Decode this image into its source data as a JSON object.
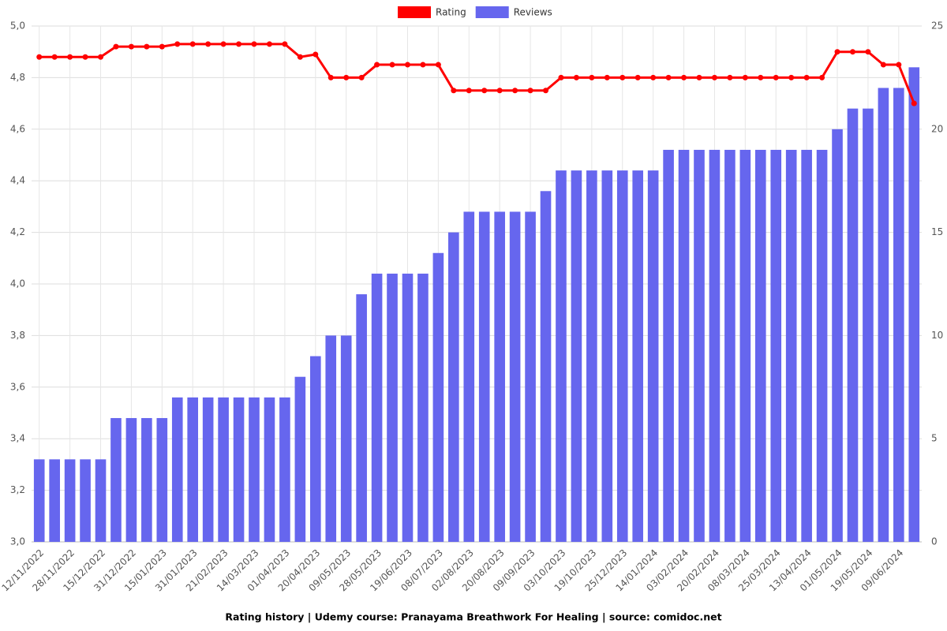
{
  "chart_data": {
    "type": "combo",
    "title": "Rating history | Udemy course: Pranayama Breathwork For Healing | source: comidoc.net",
    "categories": [
      "12/11/2022",
      null,
      "28/11/2022",
      null,
      "15/12/2022",
      null,
      "31/12/2022",
      null,
      "15/01/2023",
      null,
      "31/01/2023",
      null,
      "21/02/2023",
      null,
      "14/03/2023",
      null,
      "01/04/2023",
      null,
      "20/04/2023",
      null,
      "09/05/2023",
      null,
      "28/05/2023",
      null,
      "19/06/2023",
      null,
      "08/07/2023",
      null,
      "02/08/2023",
      null,
      "20/08/2023",
      null,
      "09/09/2023",
      null,
      "03/10/2023",
      null,
      "19/10/2023",
      null,
      "25/12/2023",
      null,
      "14/01/2024",
      null,
      "03/02/2024",
      null,
      "20/02/2024",
      null,
      "08/03/2024",
      null,
      "25/03/2024",
      null,
      "13/04/2024",
      null,
      "01/05/2024",
      null,
      "19/05/2024",
      null,
      "09/06/2024",
      null
    ],
    "series": [
      {
        "name": "Rating",
        "type": "line",
        "axis": "y",
        "color": "#ff0000",
        "values": [
          4.88,
          4.88,
          4.88,
          4.88,
          4.88,
          4.92,
          4.92,
          4.92,
          4.92,
          4.93,
          4.93,
          4.93,
          4.93,
          4.93,
          4.93,
          4.93,
          4.93,
          4.88,
          4.89,
          4.8,
          4.8,
          4.8,
          4.85,
          4.85,
          4.85,
          4.85,
          4.85,
          4.75,
          4.75,
          4.75,
          4.75,
          4.75,
          4.75,
          4.75,
          4.8,
          4.8,
          4.8,
          4.8,
          4.8,
          4.8,
          4.8,
          4.8,
          4.8,
          4.8,
          4.8,
          4.8,
          4.8,
          4.8,
          4.8,
          4.8,
          4.8,
          4.8,
          4.9,
          4.9,
          4.9,
          4.85,
          4.85,
          4.7
        ]
      },
      {
        "name": "Reviews",
        "type": "bar",
        "axis": "y2",
        "color": "#6666ee",
        "values": [
          4,
          4,
          4,
          4,
          4,
          6,
          6,
          6,
          6,
          7,
          7,
          7,
          7,
          7,
          7,
          7,
          7,
          8,
          9,
          10,
          10,
          12,
          13,
          13,
          13,
          13,
          14,
          15,
          16,
          16,
          16,
          16,
          16,
          17,
          18,
          18,
          18,
          18,
          18,
          18,
          18,
          19,
          19,
          19,
          19,
          19,
          19,
          19,
          19,
          19,
          19,
          19,
          20,
          21,
          21,
          22,
          22,
          23
        ]
      }
    ],
    "ylim": [
      3.0,
      5.0
    ],
    "yticks": [
      {
        "value": 3.0,
        "label": "3,0"
      },
      {
        "value": 3.2,
        "label": "3,2"
      },
      {
        "value": 3.4,
        "label": "3,4"
      },
      {
        "value": 3.6,
        "label": "3,6"
      },
      {
        "value": 3.8,
        "label": "3,8"
      },
      {
        "value": 4.0,
        "label": "4,0"
      },
      {
        "value": 4.2,
        "label": "4,2"
      },
      {
        "value": 4.4,
        "label": "4,4"
      },
      {
        "value": 4.6,
        "label": "4,6"
      },
      {
        "value": 4.8,
        "label": "4,8"
      },
      {
        "value": 5.0,
        "label": "5,0"
      }
    ],
    "y2lim": [
      0,
      25
    ],
    "y2ticks": [
      0,
      5,
      10,
      15,
      20,
      25
    ],
    "grid": true,
    "legend": "top"
  }
}
